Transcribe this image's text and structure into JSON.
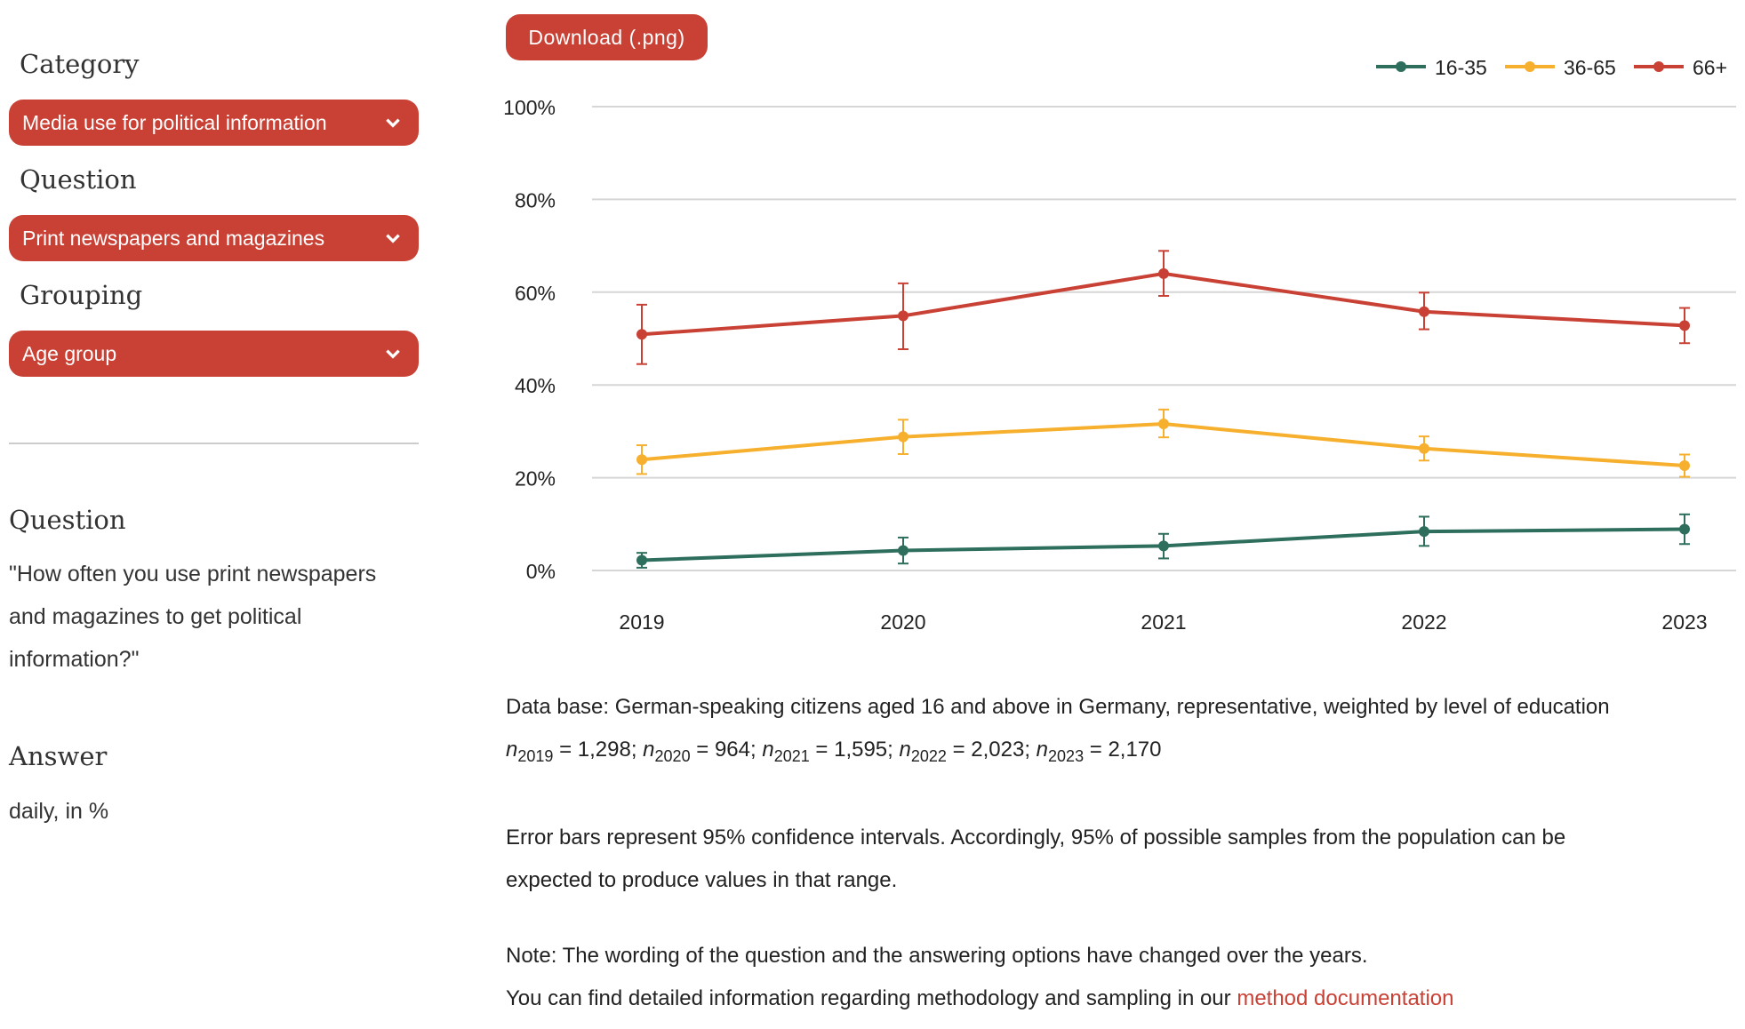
{
  "sidebar": {
    "category_label": "Category",
    "category_value": "Media use for political information",
    "question_label": "Question",
    "question_value": "Print newspapers and magazines",
    "grouping_label": "Grouping",
    "grouping_value": "Age group",
    "info_question_heading": "Question",
    "info_question_text": "\"How often you use print newspapers and magazines to get political information?\"",
    "answer_heading": "Answer",
    "answer_text": "daily, in %"
  },
  "download_label": "Download (.png)",
  "chart_data": {
    "type": "line",
    "x": [
      "2019",
      "2020",
      "2021",
      "2022",
      "2023"
    ],
    "ylim": [
      0,
      100
    ],
    "yticks": [
      "0%",
      "20%",
      "40%",
      "60%",
      "80%",
      "100%"
    ],
    "grid": true,
    "legend": "top-right",
    "error_bars": "95% confidence intervals",
    "series": [
      {
        "name": "16-35",
        "color": "#2e6e5c",
        "values": [
          2.2,
          4.3,
          5.3,
          8.4,
          8.9
        ],
        "lower": [
          0.6,
          1.5,
          2.6,
          5.3,
          5.7
        ],
        "upper": [
          3.8,
          7.1,
          7.9,
          11.6,
          12.1
        ]
      },
      {
        "name": "36-65",
        "color": "#f6b02e",
        "values": [
          23.9,
          28.8,
          31.6,
          26.3,
          22.6
        ],
        "lower": [
          20.8,
          25.1,
          28.7,
          23.7,
          20.2
        ],
        "upper": [
          27.0,
          32.5,
          34.7,
          28.9,
          25.0
        ]
      },
      {
        "name": "66+",
        "color": "#c94135",
        "values": [
          50.9,
          54.9,
          64.0,
          55.8,
          52.8
        ],
        "lower": [
          44.5,
          47.7,
          59.2,
          52.0,
          49.0
        ],
        "upper": [
          57.3,
          61.9,
          68.9,
          59.9,
          56.6
        ]
      }
    ]
  },
  "notes": {
    "database": "Data base: German-speaking citizens aged 16 and above in Germany, representative, weighted by level of education",
    "samples": [
      {
        "year": "2019",
        "n": "1,298"
      },
      {
        "year": "2020",
        "n": "964"
      },
      {
        "year": "2021",
        "n": "1,595"
      },
      {
        "year": "2022",
        "n": "2,023"
      },
      {
        "year": "2023",
        "n": "2,170"
      }
    ],
    "error_bars_1": "Error bars represent 95% confidence intervals. Accordingly, 95% of possible samples from the population can be",
    "error_bars_2": "expected to produce values in that range.",
    "note_1": "Note: The wording of the question and the answering options have changed over the years.",
    "note_2": "You can find detailed information regarding methodology and sampling in our ",
    "link": "method documentation"
  }
}
